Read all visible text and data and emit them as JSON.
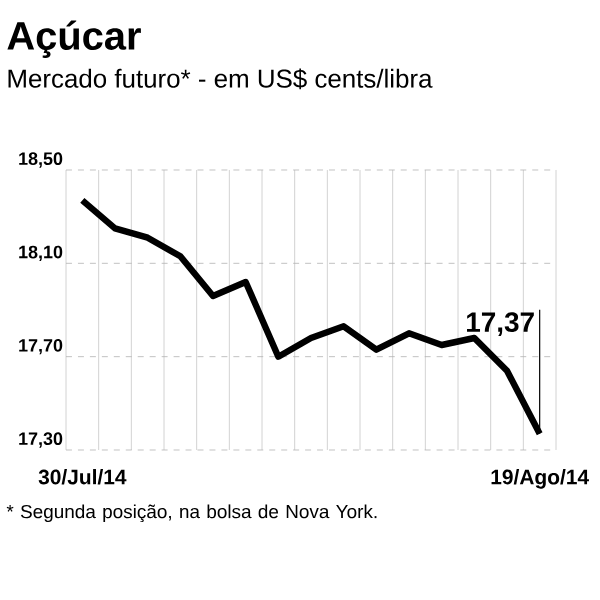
{
  "chart_data": {
    "type": "line",
    "title": "Açúcar",
    "subtitle": "Mercado futuro* - em US$ cents/libra",
    "categories": [
      "30/Jul/14",
      null,
      null,
      null,
      null,
      null,
      null,
      null,
      null,
      null,
      null,
      null,
      null,
      null,
      "19/Ago/14"
    ],
    "series": [
      {
        "color": "#000000",
        "values": [
          18.37,
          18.25,
          18.21,
          18.13,
          17.96,
          18.02,
          17.7,
          17.78,
          17.83,
          17.73,
          17.8,
          17.75,
          17.78,
          17.64,
          17.37
        ],
        "value_labels": [
          null,
          null,
          null,
          null,
          null,
          null,
          null,
          null,
          null,
          null,
          null,
          null,
          null,
          null,
          "17,37"
        ]
      }
    ],
    "ylim": [
      17.3,
      18.5
    ],
    "yticks": [
      {
        "value": 17.3,
        "label": "17,30"
      },
      {
        "value": 17.7,
        "label": "17,70"
      },
      {
        "value": 18.1,
        "label": "18,10"
      },
      {
        "value": 18.5,
        "label": "18,50"
      }
    ],
    "grid": true,
    "annotations": [
      "* Segunda posição, na bolsa de Nova York."
    ]
  }
}
